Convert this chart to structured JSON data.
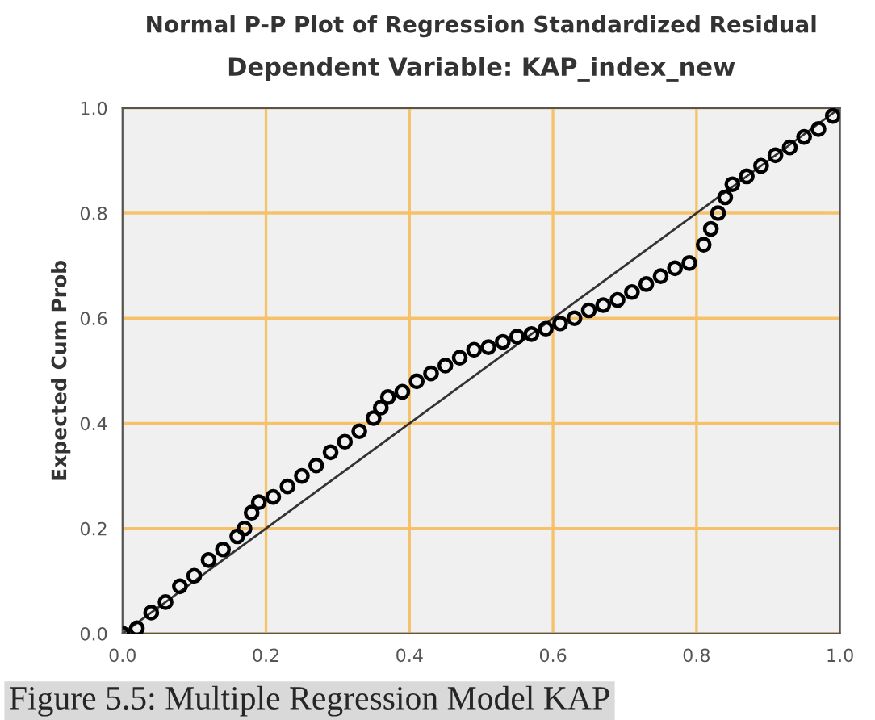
{
  "chart_data": {
    "type": "scatter",
    "title": "Normal P-P Plot of Regression Standardized Residual",
    "subtitle": "Dependent Variable: KAP_index_new",
    "ylabel": "Expected Cum Prob",
    "annotations": [
      "Figure 5.5: Multiple Regression Model KAP"
    ],
    "series": [
      {
        "color": "#000000",
        "marker": "circle",
        "x": [
          0,
          0.02,
          0.04,
          0.06,
          0.08,
          0.1,
          0.12,
          0.14,
          0.16,
          0.17,
          0.18,
          0.19,
          0.21,
          0.23,
          0.25,
          0.27,
          0.29,
          0.31,
          0.33,
          0.35,
          0.36,
          0.37,
          0.39,
          0.41,
          0.43,
          0.45,
          0.47,
          0.49,
          0.51,
          0.53,
          0.55,
          0.57,
          0.59,
          0.61,
          0.63,
          0.65,
          0.67,
          0.69,
          0.71,
          0.73,
          0.75,
          0.77,
          0.79,
          0.81,
          0.82,
          0.83,
          0.84,
          0.85,
          0.87,
          0.89,
          0.91,
          0.93,
          0.95,
          0.97,
          0.99
        ],
        "values": [
          0,
          0.01,
          0.04,
          0.06,
          0.09,
          0.11,
          0.14,
          0.16,
          0.185,
          0.2,
          0.23,
          0.25,
          0.26,
          0.28,
          0.3,
          0.32,
          0.345,
          0.365,
          0.385,
          0.41,
          0.43,
          0.45,
          0.46,
          0.48,
          0.495,
          0.51,
          0.525,
          0.54,
          0.545,
          0.555,
          0.565,
          0.57,
          0.58,
          0.59,
          0.6,
          0.615,
          0.625,
          0.635,
          0.65,
          0.665,
          0.68,
          0.695,
          0.705,
          0.74,
          0.77,
          0.8,
          0.83,
          0.855,
          0.87,
          0.89,
          0.91,
          0.925,
          0.945,
          0.96,
          0.985
        ]
      },
      {
        "type": "line",
        "color": "#333333",
        "line_style": "solid",
        "x": [
          0,
          1
        ],
        "values": [
          0,
          1
        ]
      }
    ],
    "xlim": [
      0,
      1
    ],
    "ylim": [
      0,
      1
    ],
    "xticks": [
      {
        "value": 0,
        "label": "0.0"
      },
      {
        "value": 0.2,
        "label": "0.2"
      },
      {
        "value": 0.4,
        "label": "0.4"
      },
      {
        "value": 0.6,
        "label": "0.6"
      },
      {
        "value": 0.8,
        "label": "0.8"
      },
      {
        "value": 1,
        "label": "1.0"
      }
    ],
    "yticks": [
      {
        "value": 0,
        "label": "0.0"
      },
      {
        "value": 0.2,
        "label": "0.2"
      },
      {
        "value": 0.4,
        "label": "0.4"
      },
      {
        "value": 0.6,
        "label": "0.6"
      },
      {
        "value": 0.8,
        "label": "0.8"
      },
      {
        "value": 1,
        "label": "1.0"
      }
    ],
    "grid": true
  }
}
